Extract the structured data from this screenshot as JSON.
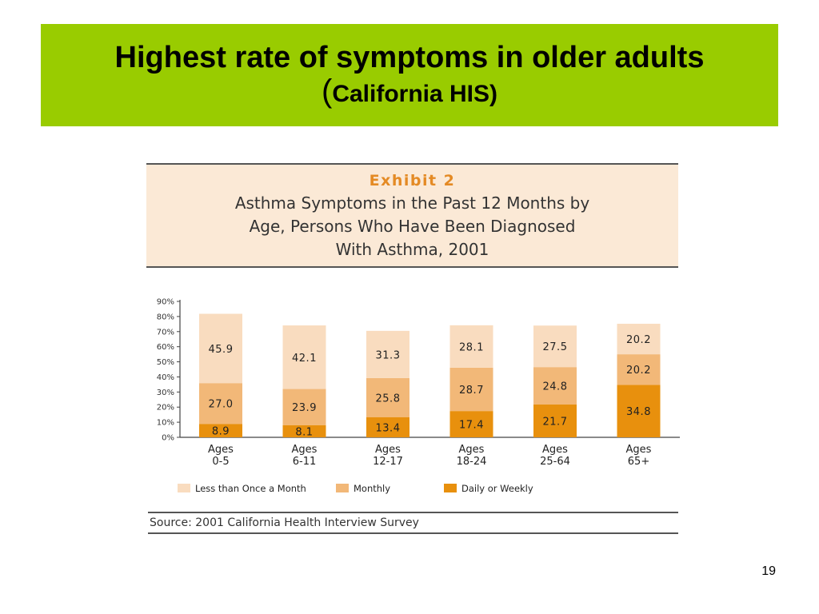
{
  "slide": {
    "title_line1": "Highest rate of symptoms in older adults",
    "title_line2_paren_open": "(",
    "title_line2_text": "California HIS)",
    "page_number": "19"
  },
  "exhibit": {
    "label": "Exhibit 2",
    "title_lines": [
      "Asthma Symptoms in the Past 12 Months by",
      "Age, Persons Who Have Been Diagnosed",
      "With Asthma, 2001"
    ]
  },
  "source": "Source: 2001 California Health Interview Survey",
  "colors": {
    "title_band": "#99cc00",
    "exhibit_label": "#e48a24",
    "exhibit_bg": "#fbe9d6",
    "less_than_once": "#f9dcbf",
    "monthly": "#f2b878",
    "daily_weekly": "#e8900d"
  },
  "chart_data": {
    "type": "bar",
    "stacked": true,
    "categories": [
      [
        "Ages",
        "0-5"
      ],
      [
        "Ages",
        "6-11"
      ],
      [
        "Ages",
        "12-17"
      ],
      [
        "Ages",
        "18-24"
      ],
      [
        "Ages",
        "25-64"
      ],
      [
        "Ages",
        "65+"
      ]
    ],
    "series": [
      {
        "name": "Daily or Weekly",
        "values": [
          8.9,
          8.1,
          13.4,
          17.4,
          21.7,
          34.8
        ],
        "labels": [
          "8.9",
          "8.1",
          "13.4",
          "17.4",
          "21.7",
          "34.8"
        ]
      },
      {
        "name": "Monthly",
        "values": [
          27.0,
          23.9,
          25.8,
          28.7,
          24.8,
          20.2
        ],
        "labels": [
          "27.0",
          "23.9",
          "25.8",
          "28.7",
          "24.8",
          "20.2"
        ]
      },
      {
        "name": "Less than Once a Month",
        "values": [
          45.9,
          42.1,
          31.3,
          28.1,
          27.5,
          20.2
        ],
        "labels": [
          "45.9",
          "42.1",
          "31.3",
          "28.1",
          "27.5",
          "20.2"
        ]
      }
    ],
    "legend_order": [
      "Less than Once a Month",
      "Monthly",
      "Daily or Weekly"
    ],
    "yticks": [
      "0%",
      "10%",
      "20%",
      "30%",
      "40%",
      "50%",
      "60%",
      "70%",
      "80%",
      "90%"
    ],
    "ylim": [
      0,
      90
    ],
    "grid": false,
    "legend_position": "bottom"
  }
}
